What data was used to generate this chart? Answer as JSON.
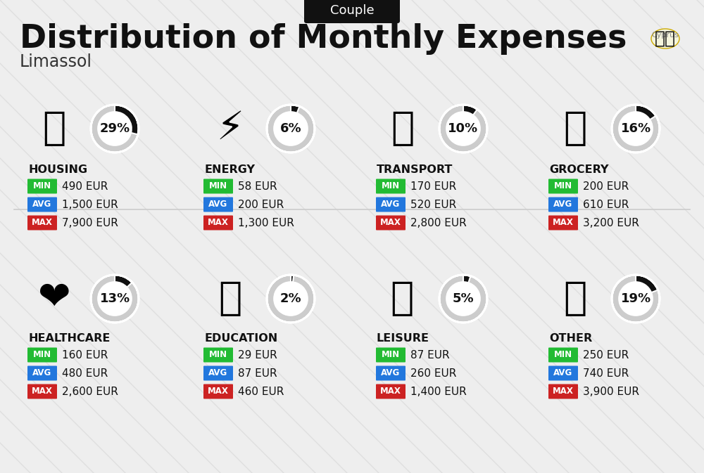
{
  "title": "Distribution of Monthly Expenses",
  "subtitle": "Couple",
  "city": "Limassol",
  "bg_color": "#eeeeee",
  "categories": [
    {
      "name": "HOUSING",
      "pct": 29,
      "min": "490 EUR",
      "avg": "1,500 EUR",
      "max": "7,900 EUR",
      "row": 0,
      "col": 0
    },
    {
      "name": "ENERGY",
      "pct": 6,
      "min": "58 EUR",
      "avg": "200 EUR",
      "max": "1,300 EUR",
      "row": 0,
      "col": 1
    },
    {
      "name": "TRANSPORT",
      "pct": 10,
      "min": "170 EUR",
      "avg": "520 EUR",
      "max": "2,800 EUR",
      "row": 0,
      "col": 2
    },
    {
      "name": "GROCERY",
      "pct": 16,
      "min": "200 EUR",
      "avg": "610 EUR",
      "max": "3,200 EUR",
      "row": 0,
      "col": 3
    },
    {
      "name": "HEALTHCARE",
      "pct": 13,
      "min": "160 EUR",
      "avg": "480 EUR",
      "max": "2,600 EUR",
      "row": 1,
      "col": 0
    },
    {
      "name": "EDUCATION",
      "pct": 2,
      "min": "29 EUR",
      "avg": "87 EUR",
      "max": "460 EUR",
      "row": 1,
      "col": 1
    },
    {
      "name": "LEISURE",
      "pct": 5,
      "min": "87 EUR",
      "avg": "260 EUR",
      "max": "1,400 EUR",
      "row": 1,
      "col": 2
    },
    {
      "name": "OTHER",
      "pct": 19,
      "min": "250 EUR",
      "avg": "740 EUR",
      "max": "3,900 EUR",
      "row": 1,
      "col": 3
    }
  ],
  "min_color": "#22bb33",
  "avg_color": "#2277dd",
  "max_color": "#cc2222",
  "donut_filled_color": "#111111",
  "donut_empty_color": "#cccccc"
}
